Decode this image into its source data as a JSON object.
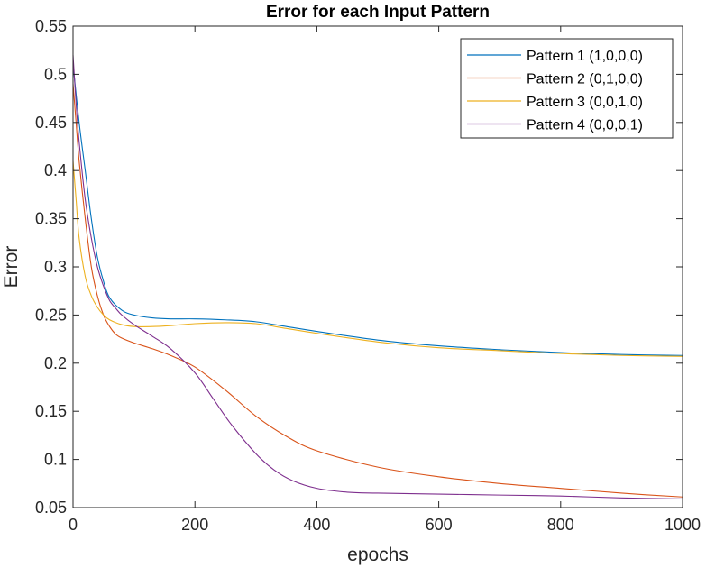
{
  "chart_data": {
    "type": "line",
    "title": "Error for each Input Pattern",
    "xlabel": "epochs",
    "ylabel": "Error",
    "xlim": [
      0,
      1000
    ],
    "ylim": [
      0.05,
      0.55
    ],
    "xticks": [
      0,
      200,
      400,
      600,
      800,
      1000
    ],
    "xtick_labels": [
      "0",
      "200",
      "400",
      "600",
      "800",
      "1000"
    ],
    "yticks": [
      0.05,
      0.1,
      0.15,
      0.2,
      0.25,
      0.3,
      0.35,
      0.4,
      0.45,
      0.5,
      0.55
    ],
    "ytick_labels": [
      "0.05",
      "0.1",
      "0.15",
      "0.2",
      "0.25",
      "0.3",
      "0.35",
      "0.4",
      "0.45",
      "0.5",
      "0.55"
    ],
    "grid": false,
    "legend_position": "top-right",
    "series": [
      {
        "name": "Pattern 1 (1,0,0,0)",
        "color": "#0072BD",
        "x": [
          0,
          10,
          20,
          30,
          40,
          50,
          60,
          80,
          100,
          130,
          160,
          200,
          250,
          300,
          350,
          400,
          500,
          600,
          700,
          800,
          900,
          1000
        ],
        "y": [
          0.51,
          0.45,
          0.4,
          0.35,
          0.31,
          0.285,
          0.268,
          0.255,
          0.25,
          0.247,
          0.246,
          0.246,
          0.245,
          0.243,
          0.238,
          0.233,
          0.224,
          0.218,
          0.214,
          0.211,
          0.209,
          0.208
        ]
      },
      {
        "name": "Pattern 2 (0,1,0,0)",
        "color": "#D95319",
        "x": [
          0,
          5,
          10,
          20,
          30,
          40,
          50,
          60,
          70,
          80,
          100,
          130,
          160,
          200,
          250,
          300,
          350,
          400,
          500,
          600,
          700,
          800,
          900,
          1000
        ],
        "y": [
          0.49,
          0.45,
          0.41,
          0.35,
          0.3,
          0.27,
          0.25,
          0.238,
          0.23,
          0.226,
          0.221,
          0.215,
          0.208,
          0.196,
          0.172,
          0.145,
          0.124,
          0.109,
          0.092,
          0.082,
          0.075,
          0.07,
          0.065,
          0.061
        ]
      },
      {
        "name": "Pattern 3 (0,0,1,0)",
        "color": "#EDB120",
        "x": [
          0,
          5,
          10,
          20,
          30,
          40,
          50,
          60,
          80,
          100,
          130,
          160,
          200,
          250,
          300,
          350,
          400,
          500,
          600,
          700,
          800,
          900,
          1000
        ],
        "y": [
          0.41,
          0.37,
          0.33,
          0.29,
          0.27,
          0.258,
          0.25,
          0.245,
          0.24,
          0.238,
          0.238,
          0.239,
          0.241,
          0.242,
          0.241,
          0.236,
          0.231,
          0.222,
          0.216,
          0.213,
          0.21,
          0.208,
          0.207
        ]
      },
      {
        "name": "Pattern 4 (0,0,0,1)",
        "color": "#7E2F8E",
        "x": [
          0,
          5,
          10,
          20,
          30,
          40,
          50,
          60,
          70,
          80,
          100,
          130,
          160,
          200,
          230,
          260,
          300,
          330,
          360,
          400,
          450,
          500,
          600,
          700,
          800,
          900,
          1000
        ],
        "y": [
          0.52,
          0.47,
          0.43,
          0.37,
          0.33,
          0.3,
          0.28,
          0.265,
          0.257,
          0.25,
          0.24,
          0.228,
          0.215,
          0.19,
          0.163,
          0.136,
          0.106,
          0.089,
          0.078,
          0.07,
          0.066,
          0.065,
          0.064,
          0.063,
          0.062,
          0.06,
          0.059
        ]
      }
    ]
  }
}
